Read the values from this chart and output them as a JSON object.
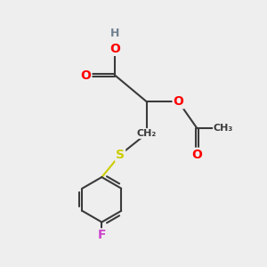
{
  "bg_color": "#eeeeee",
  "atom_colors": {
    "C": "#3a3a3a",
    "O": "#ff0000",
    "S": "#cccc00",
    "F": "#cc44cc",
    "H": "#708090"
  },
  "bond_color": "#3a3a3a",
  "bond_width": 1.5,
  "font_size": 10
}
